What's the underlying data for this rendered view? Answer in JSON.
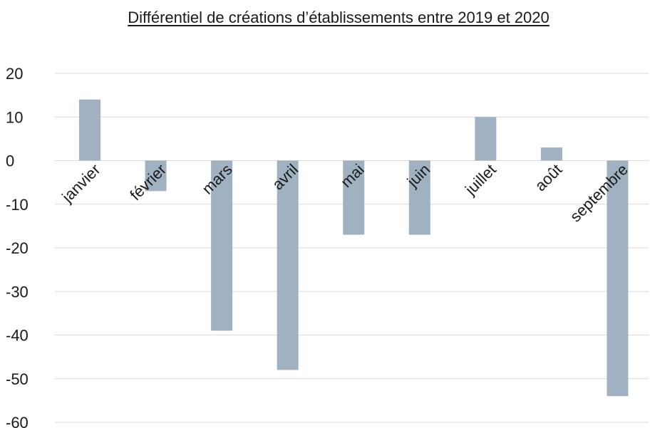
{
  "chart_data": {
    "type": "bar",
    "title": "Différentiel de créations d’établissements entre 2019 et 2020",
    "xlabel": "",
    "ylabel": "",
    "categories": [
      "janvier",
      "février",
      "mars",
      "avril",
      "mai",
      "juin",
      "juillet",
      "août",
      "septembre"
    ],
    "values": [
      14,
      -7,
      -39,
      -48,
      -17,
      -17,
      10,
      3,
      -54
    ],
    "ylim": [
      -60,
      20
    ],
    "yticks": [
      20,
      10,
      0,
      -10,
      -20,
      -30,
      -40,
      -50,
      -60
    ],
    "grid": true,
    "legend": "none",
    "bar_color": "#a0b2c2",
    "grid_color": "#d9d9d9"
  }
}
